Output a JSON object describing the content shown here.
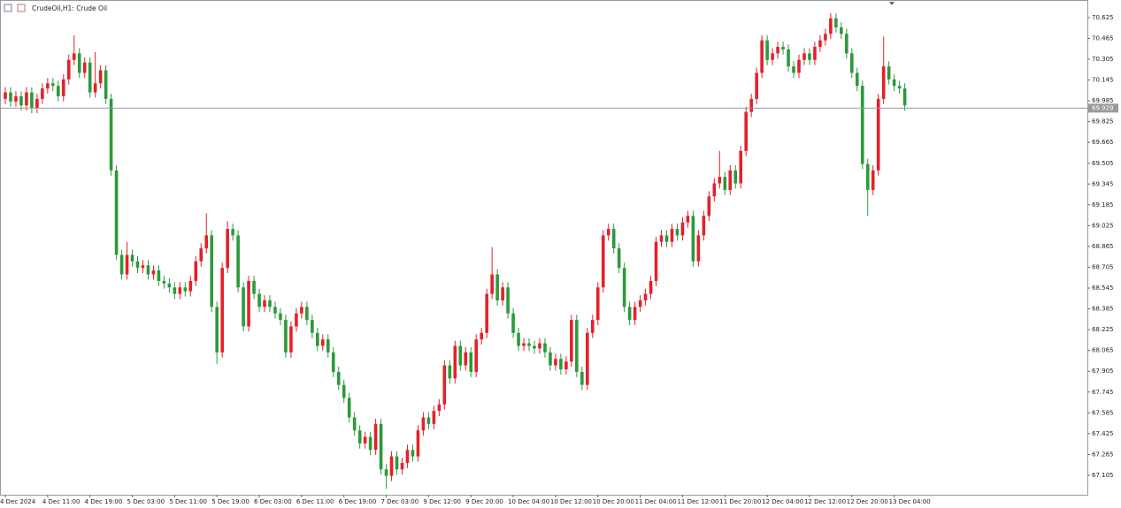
{
  "chart_data": {
    "type": "candlestick",
    "title": "CrudeOil,H1:  Crude Oil",
    "up_color": "#e3212b",
    "down_color": "#2b9a3b",
    "grid": false,
    "ylim": [
      66.955,
      70.747
    ],
    "yticks": [
      67.105,
      67.265,
      67.425,
      67.585,
      67.745,
      67.905,
      68.065,
      68.225,
      68.385,
      68.545,
      68.705,
      68.865,
      69.025,
      69.185,
      69.345,
      69.505,
      69.665,
      69.825,
      69.985,
      70.145,
      70.305,
      70.465,
      70.625
    ],
    "current_price": 69.929,
    "categories": [
      "4 Dec 2024",
      null,
      null,
      null,
      null,
      null,
      null,
      null,
      "4 Dec 11:00",
      null,
      null,
      null,
      null,
      null,
      null,
      null,
      "4 Dec 19:00",
      null,
      null,
      null,
      null,
      null,
      null,
      null,
      "5 Dec 03:00",
      null,
      null,
      null,
      null,
      null,
      null,
      null,
      "5 Dec 11:00",
      null,
      null,
      null,
      null,
      null,
      null,
      null,
      "5 Dec 19:00",
      null,
      null,
      null,
      null,
      null,
      null,
      null,
      "6 Dec 03:00",
      null,
      null,
      null,
      null,
      null,
      null,
      null,
      "6 Dec 11:00",
      null,
      null,
      null,
      null,
      null,
      null,
      null,
      "6 Dec 19:00",
      null,
      null,
      null,
      null,
      null,
      null,
      null,
      "7 Dec 03:00",
      null,
      null,
      null,
      null,
      null,
      null,
      null,
      "9 Dec 12:00",
      null,
      null,
      null,
      null,
      null,
      null,
      null,
      "9 Dec 20:00",
      null,
      null,
      null,
      null,
      null,
      null,
      null,
      "10 Dec 04:00",
      null,
      null,
      null,
      null,
      null,
      null,
      null,
      "10 Dec 12:00",
      null,
      null,
      null,
      null,
      null,
      null,
      null,
      "10 Dec 20:00",
      null,
      null,
      null,
      null,
      null,
      null,
      null,
      "11 Dec 04:00",
      null,
      null,
      null,
      null,
      null,
      null,
      null,
      "11 Dec 12:00",
      null,
      null,
      null,
      null,
      null,
      null,
      null,
      "11 Dec 20:00",
      null,
      null,
      null,
      null,
      null,
      null,
      null,
      "12 Dec 04:00",
      null,
      null,
      null,
      null,
      null,
      null,
      null,
      "12 Dec 12:00",
      null,
      null,
      null,
      null,
      null,
      null,
      null,
      "12 Dec 20:00",
      null,
      null,
      null,
      null,
      null,
      null,
      null,
      "13 Dec 04:00",
      null,
      null
    ],
    "open": [
      70.0,
      70.05,
      69.98,
      70.02,
      69.95,
      70.05,
      69.93,
      70.0,
      70.08,
      70.12,
      70.1,
      70.02,
      70.15,
      70.3,
      70.35,
      70.2,
      70.28,
      70.05,
      70.12,
      70.22,
      70.0,
      69.45,
      68.8,
      68.65,
      68.8,
      68.75,
      68.7,
      68.72,
      68.65,
      68.68,
      68.6,
      68.58,
      68.55,
      68.5,
      68.55,
      68.52,
      68.6,
      68.75,
      68.85,
      68.95,
      68.4,
      68.05,
      68.7,
      69.0,
      68.95,
      68.55,
      68.25,
      68.6,
      68.5,
      68.4,
      68.45,
      68.4,
      68.35,
      68.3,
      68.05,
      68.25,
      68.35,
      68.4,
      68.3,
      68.2,
      68.1,
      68.15,
      68.05,
      67.9,
      67.8,
      67.7,
      67.55,
      67.45,
      67.35,
      67.4,
      67.3,
      67.5,
      67.15,
      67.1,
      67.25,
      67.15,
      67.2,
      67.3,
      67.25,
      67.45,
      67.55,
      67.5,
      67.6,
      67.65,
      67.95,
      67.85,
      68.1,
      67.95,
      68.05,
      67.9,
      68.15,
      68.2,
      68.5,
      68.65,
      68.45,
      68.55,
      68.35,
      68.2,
      68.1,
      68.12,
      68.1,
      68.08,
      68.12,
      68.05,
      67.95,
      68.0,
      67.92,
      67.98,
      68.3,
      67.9,
      67.8,
      68.2,
      68.3,
      68.55,
      68.95,
      69.0,
      68.85,
      68.7,
      68.4,
      68.3,
      68.4,
      68.45,
      68.5,
      68.6,
      68.9,
      68.95,
      68.9,
      69.0,
      68.95,
      69.05,
      69.1,
      68.75,
      68.95,
      69.1,
      69.25,
      69.35,
      69.4,
      69.3,
      69.45,
      69.35,
      69.6,
      69.9,
      70.0,
      70.2,
      70.45,
      70.3,
      70.35,
      70.4,
      70.38,
      70.25,
      70.2,
      70.3,
      70.35,
      70.3,
      70.4,
      70.45,
      70.5,
      70.62,
      70.55,
      70.5,
      70.35,
      70.2,
      70.1,
      69.5,
      69.3,
      69.45,
      70.0,
      70.25,
      70.15,
      70.1,
      70.08
    ],
    "high": [
      70.09,
      70.09,
      70.06,
      70.06,
      70.09,
      70.09,
      70.04,
      70.12,
      70.16,
      70.16,
      70.14,
      70.19,
      70.34,
      70.49,
      70.39,
      70.32,
      70.32,
      70.36,
      70.26,
      70.26,
      70.04,
      69.49,
      68.84,
      68.9,
      68.84,
      68.79,
      68.76,
      68.76,
      68.72,
      68.72,
      68.64,
      68.62,
      68.59,
      68.59,
      68.59,
      68.64,
      68.79,
      68.89,
      69.12,
      68.99,
      68.44,
      68.74,
      69.06,
      69.04,
      68.99,
      68.59,
      68.64,
      68.64,
      68.54,
      68.49,
      68.49,
      68.44,
      68.39,
      68.34,
      68.29,
      68.39,
      68.44,
      68.44,
      68.34,
      68.24,
      68.19,
      68.19,
      68.09,
      67.94,
      67.84,
      67.74,
      67.59,
      67.49,
      67.44,
      67.44,
      67.54,
      67.54,
      67.19,
      67.29,
      67.29,
      67.24,
      67.34,
      67.34,
      67.49,
      67.59,
      67.59,
      67.64,
      67.69,
      67.99,
      67.99,
      68.14,
      68.14,
      68.09,
      68.09,
      68.19,
      68.24,
      68.54,
      68.86,
      68.69,
      68.59,
      68.59,
      68.39,
      68.24,
      68.16,
      68.16,
      68.14,
      68.16,
      68.16,
      68.09,
      68.04,
      68.04,
      68.02,
      68.34,
      68.34,
      67.94,
      68.24,
      68.34,
      68.59,
      68.99,
      69.04,
      69.04,
      68.89,
      68.74,
      68.44,
      68.44,
      68.49,
      68.54,
      68.64,
      68.94,
      68.99,
      68.99,
      69.04,
      69.04,
      69.09,
      69.14,
      69.14,
      68.99,
      69.14,
      69.29,
      69.39,
      69.6,
      69.44,
      69.49,
      69.49,
      69.64,
      69.94,
      70.04,
      70.24,
      70.49,
      70.49,
      70.39,
      70.44,
      70.44,
      70.42,
      70.29,
      70.34,
      70.39,
      70.39,
      70.44,
      70.49,
      70.54,
      70.66,
      70.66,
      70.59,
      70.54,
      70.39,
      70.24,
      70.14,
      69.54,
      69.49,
      70.04,
      70.48,
      70.29,
      70.19,
      70.14,
      70.12
    ],
    "low": [
      69.96,
      69.94,
      69.94,
      69.91,
      69.91,
      69.89,
      69.89,
      69.96,
      70.04,
      70.06,
      69.98,
      69.98,
      70.11,
      70.26,
      70.16,
      70.16,
      70.01,
      70.01,
      70.08,
      69.96,
      69.41,
      68.76,
      68.61,
      68.61,
      68.71,
      68.66,
      68.66,
      68.61,
      68.61,
      68.56,
      68.54,
      68.51,
      68.46,
      68.46,
      68.48,
      68.48,
      68.56,
      68.71,
      68.81,
      68.36,
      67.96,
      68.01,
      68.66,
      68.91,
      68.51,
      68.21,
      68.21,
      68.46,
      68.36,
      68.36,
      68.36,
      68.31,
      68.26,
      68.01,
      68.01,
      68.21,
      68.31,
      68.26,
      68.16,
      68.06,
      68.06,
      68.01,
      67.86,
      67.76,
      67.66,
      67.51,
      67.41,
      67.31,
      67.31,
      67.26,
      67.26,
      67.11,
      67.0,
      67.06,
      67.11,
      67.11,
      67.16,
      67.21,
      67.21,
      67.41,
      67.46,
      67.46,
      67.56,
      67.61,
      67.81,
      67.81,
      67.91,
      67.91,
      67.86,
      67.86,
      68.11,
      68.16,
      68.46,
      68.41,
      68.41,
      68.31,
      68.16,
      68.06,
      68.06,
      68.06,
      68.04,
      68.04,
      68.01,
      67.91,
      67.91,
      67.88,
      67.88,
      67.94,
      67.86,
      67.76,
      67.76,
      68.16,
      68.26,
      68.51,
      68.91,
      68.81,
      68.66,
      68.36,
      68.26,
      68.26,
      68.36,
      68.41,
      68.46,
      68.56,
      68.86,
      68.86,
      68.86,
      68.91,
      68.91,
      69.01,
      68.71,
      68.71,
      68.91,
      69.06,
      69.21,
      69.31,
      69.26,
      69.26,
      69.31,
      69.31,
      69.56,
      69.86,
      69.96,
      70.16,
      70.26,
      70.26,
      70.31,
      70.34,
      70.21,
      70.16,
      70.16,
      70.26,
      70.26,
      70.26,
      70.36,
      70.41,
      70.46,
      70.51,
      70.46,
      70.31,
      70.16,
      70.06,
      69.46,
      69.1,
      69.26,
      69.41,
      69.96,
      70.11,
      70.06,
      70.04,
      69.91
    ],
    "close": [
      70.05,
      69.98,
      70.02,
      69.95,
      70.05,
      69.93,
      70.0,
      70.08,
      70.12,
      70.1,
      70.02,
      70.15,
      70.3,
      70.35,
      70.2,
      70.28,
      70.05,
      70.12,
      70.22,
      70.0,
      69.45,
      68.8,
      68.65,
      68.8,
      68.75,
      68.7,
      68.72,
      68.65,
      68.68,
      68.6,
      68.58,
      68.55,
      68.5,
      68.55,
      68.52,
      68.6,
      68.75,
      68.85,
      68.95,
      68.4,
      68.05,
      68.7,
      69.0,
      68.95,
      68.55,
      68.25,
      68.6,
      68.5,
      68.4,
      68.45,
      68.4,
      68.35,
      68.3,
      68.05,
      68.25,
      68.35,
      68.4,
      68.3,
      68.2,
      68.1,
      68.15,
      68.05,
      67.9,
      67.8,
      67.7,
      67.55,
      67.45,
      67.35,
      67.4,
      67.3,
      67.5,
      67.15,
      67.1,
      67.25,
      67.15,
      67.2,
      67.3,
      67.25,
      67.45,
      67.55,
      67.5,
      67.6,
      67.65,
      67.95,
      67.85,
      68.1,
      67.95,
      68.05,
      67.9,
      68.15,
      68.2,
      68.5,
      68.65,
      68.45,
      68.55,
      68.35,
      68.2,
      68.1,
      68.12,
      68.1,
      68.08,
      68.12,
      68.05,
      67.95,
      68.0,
      67.92,
      67.98,
      68.3,
      67.9,
      67.8,
      68.2,
      68.3,
      68.55,
      68.95,
      69.0,
      68.85,
      68.7,
      68.4,
      68.3,
      68.4,
      68.45,
      68.5,
      68.6,
      68.9,
      68.95,
      68.9,
      69.0,
      68.95,
      69.05,
      69.1,
      68.75,
      68.95,
      69.1,
      69.25,
      69.35,
      69.4,
      69.3,
      69.45,
      69.35,
      69.6,
      69.9,
      70.0,
      70.2,
      70.45,
      70.3,
      70.35,
      70.4,
      70.38,
      70.25,
      70.2,
      70.3,
      70.35,
      70.3,
      70.4,
      70.45,
      70.5,
      70.62,
      70.55,
      70.5,
      70.35,
      70.2,
      70.1,
      69.5,
      69.3,
      69.45,
      70.0,
      70.25,
      70.15,
      70.1,
      70.08,
      69.95
    ]
  }
}
